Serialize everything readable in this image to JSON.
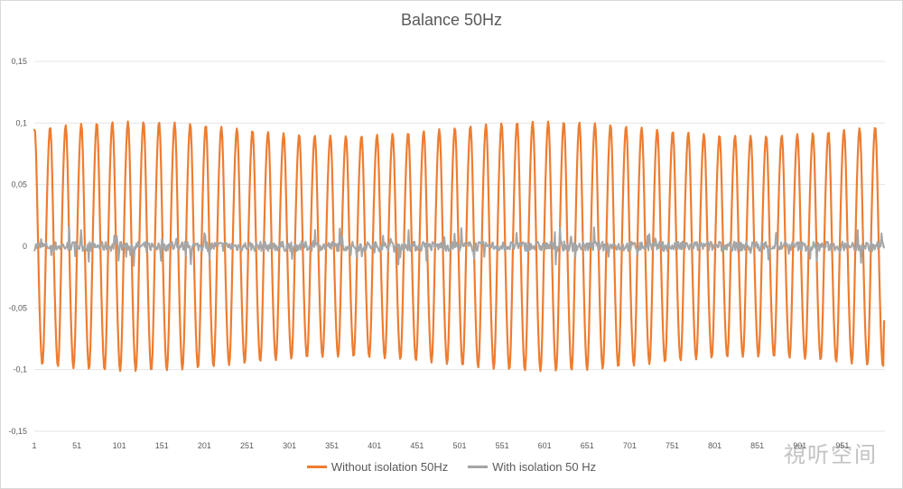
{
  "chart_data": {
    "type": "line",
    "title": "Balance 50Hz",
    "xlabel": "",
    "ylabel": "",
    "ylim": [
      -0.15,
      0.15
    ],
    "y_ticks": [
      "0,15",
      "0,1",
      "0,05",
      "0",
      "-0,05",
      "-0,1",
      "-0,15"
    ],
    "y_tick_values": [
      0.15,
      0.1,
      0.05,
      0,
      -0.05,
      -0.1,
      -0.15
    ],
    "x_ticks": [
      "1",
      "51",
      "101",
      "151",
      "201",
      "251",
      "301",
      "351",
      "401",
      "451",
      "501",
      "551",
      "601",
      "651",
      "701",
      "751",
      "801",
      "851",
      "901",
      "951"
    ],
    "x_tick_values": [
      1,
      51,
      101,
      151,
      201,
      251,
      301,
      351,
      401,
      451,
      501,
      551,
      601,
      651,
      701,
      751,
      801,
      851,
      901,
      951
    ],
    "xlim": [
      1,
      1001
    ],
    "grid": "horizontal",
    "legend_position": "bottom",
    "series": [
      {
        "name": "Without isolation 50Hz",
        "color": "#ED7D31",
        "form": "sinusoid",
        "amplitude": 0.098,
        "period_samples": 18.3,
        "start_value": 0.098,
        "end_value": -0.06,
        "peak_max": 0.113,
        "trough_min": -0.106
      },
      {
        "name": "With isolation 50 Hz",
        "color": "#A5A5A5",
        "form": "noise",
        "amplitude": 0.016,
        "center": 0
      }
    ]
  },
  "watermark": "視听空间"
}
